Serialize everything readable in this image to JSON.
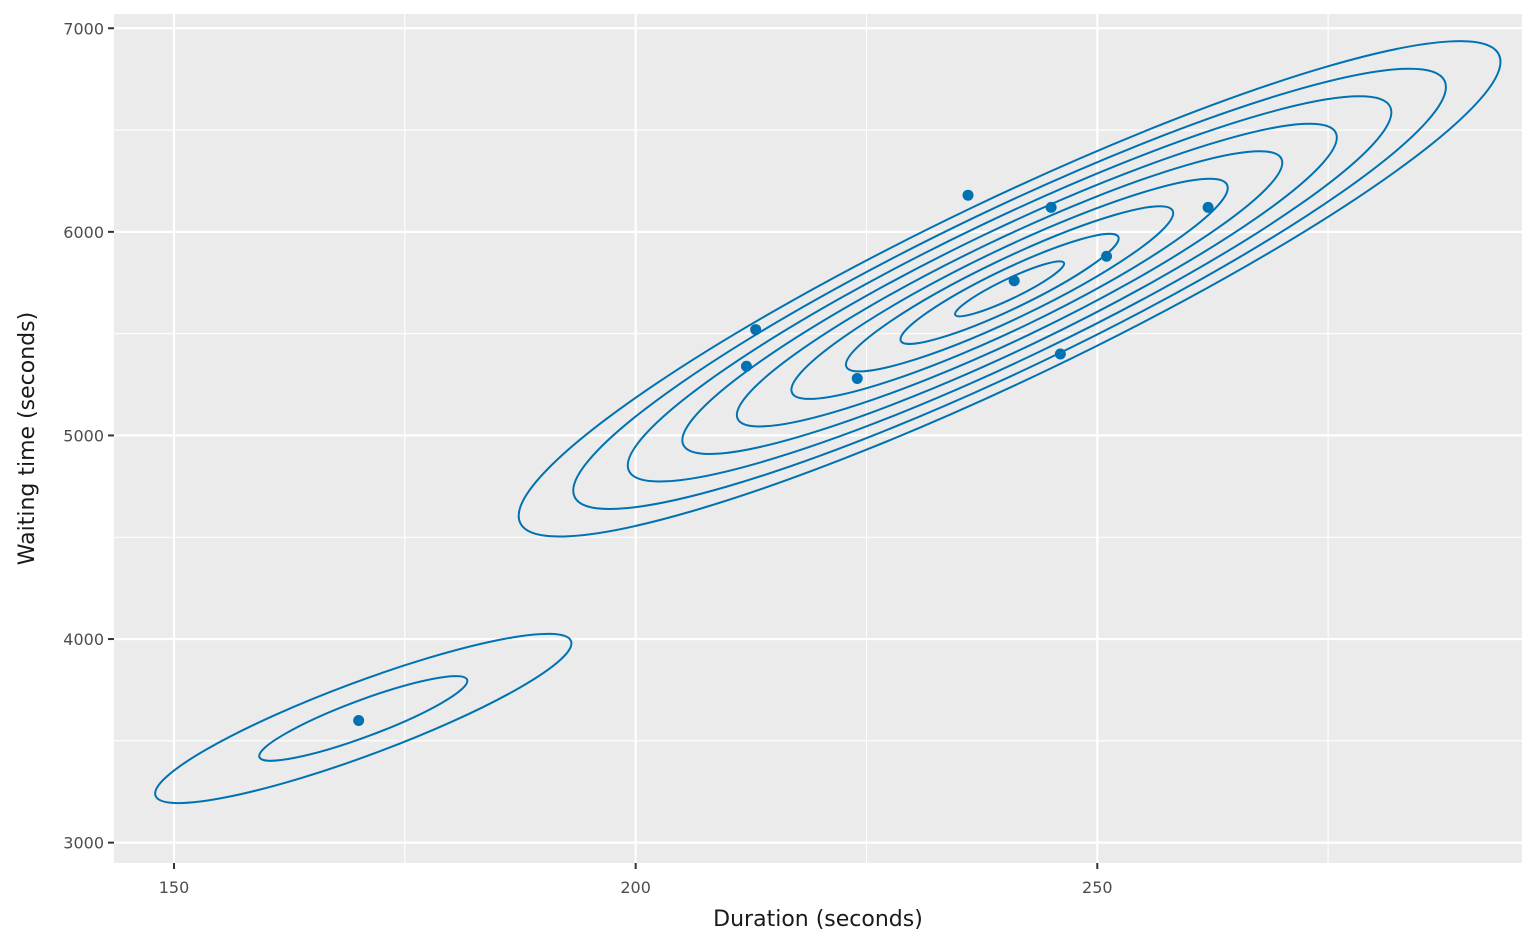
{
  "chart_data": {
    "type": "scatter",
    "title": "",
    "xlabel": "Duration (seconds)",
    "ylabel": "Waiting time (seconds)",
    "xlim": [
      143.5,
      296
    ],
    "ylim": [
      2900,
      7070
    ],
    "x_ticks": [
      150,
      200,
      250
    ],
    "x_tick_labels": [
      "150",
      "200",
      "250"
    ],
    "y_ticks": [
      3000,
      4000,
      5000,
      6000,
      7000
    ],
    "y_tick_labels": [
      "3000",
      "4000",
      "5000",
      "6000",
      "7000"
    ],
    "grid": true,
    "legend": "none",
    "colors": {
      "series": "#0072B2",
      "panel": "#EBEBEB",
      "grid": "#FFFFFF"
    },
    "points": [
      {
        "x": 170,
        "y": 3600
      },
      {
        "x": 212,
        "y": 5340
      },
      {
        "x": 213,
        "y": 5520
      },
      {
        "x": 224,
        "y": 5280
      },
      {
        "x": 236,
        "y": 6180
      },
      {
        "x": 241,
        "y": 5760
      },
      {
        "x": 245,
        "y": 6120
      },
      {
        "x": 246,
        "y": 5400
      },
      {
        "x": 251,
        "y": 5880
      },
      {
        "x": 262,
        "y": 6120
      }
    ],
    "density_contours": [
      {
        "cluster": "short",
        "center": [
          170.5,
          3610
        ],
        "semi_major": 22.5,
        "semi_minor": 380,
        "levels": 2
      },
      {
        "cluster": "long",
        "center": [
          240.5,
          5720
        ],
        "semi_major": 53,
        "semi_minor": 1150,
        "levels": 9
      }
    ]
  }
}
